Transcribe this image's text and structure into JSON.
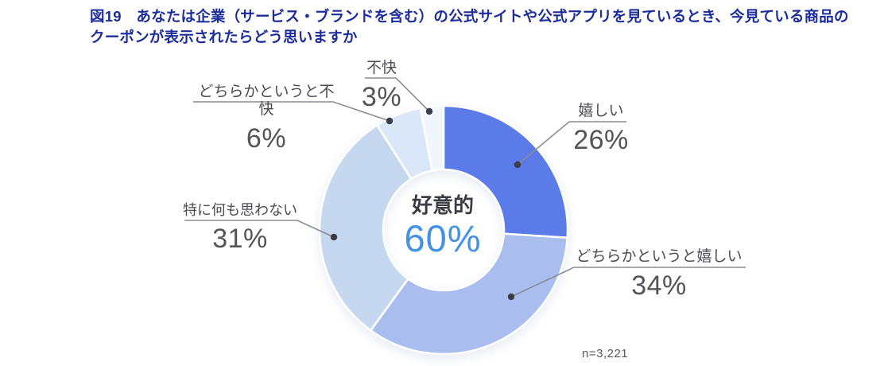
{
  "figure": {
    "title_line1": "図19　あなたは企業（サービス・ブランドを含む）の公式サイトや公式アプリを見ているとき、今見ている商品の",
    "title_line2": "クーポンが表示されたらどう思いますか",
    "title_color": "#1C2C9C",
    "sample_note": "n=3,221"
  },
  "chart_data": {
    "type": "pie",
    "subtype": "donut",
    "direction": "clockwise",
    "start_angle_deg": 0,
    "title": "図19　あなたは企業（サービス・ブランドを含む）の公式サイトや公式アプリを見ているとき、今見ている商品のクーポンが表示されたらどう思いますか",
    "center_label": {
      "text": "好意的",
      "value": "60%",
      "value_color": "#4492E4"
    },
    "slices": [
      {
        "label": "嬉しい",
        "pct_label": "26%",
        "value": 26,
        "color": "#5A7BE8"
      },
      {
        "label": "どちらかというと嬉しい",
        "pct_label": "34%",
        "value": 34,
        "color": "#A9BDEE"
      },
      {
        "label": "特に何も思わない",
        "pct_label": "31%",
        "value": 31,
        "color": "#C5D8EF"
      },
      {
        "label": "どちらかというと不快",
        "pct_label": "6%",
        "value": 6,
        "color": "#DAE7F8"
      },
      {
        "label": "不快",
        "pct_label": "3%",
        "value": 3,
        "color": "#F0F6FC"
      }
    ],
    "sample_size": "n=3,221",
    "legend_position": "none",
    "leader_line_color": "#8b8b93",
    "leader_dot_color": "#3d3d46"
  }
}
